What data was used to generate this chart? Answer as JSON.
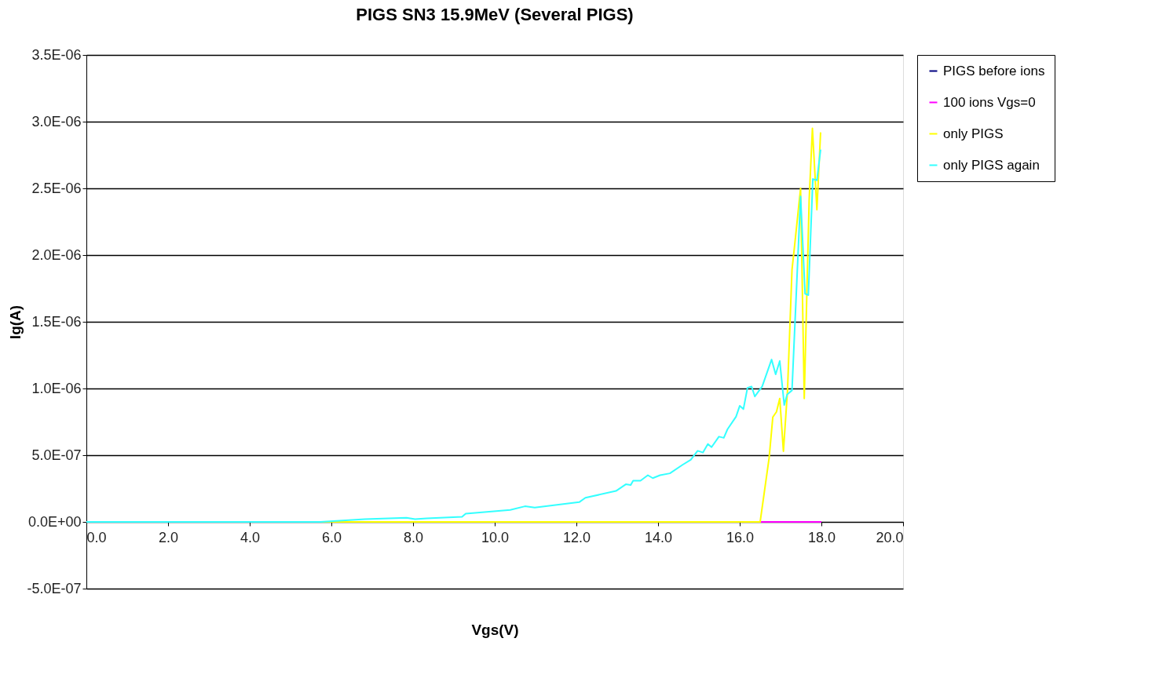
{
  "chart_data": {
    "type": "line",
    "title": "PIGS  SN3 15.9MeV (Several PIGS)",
    "xlabel": "Vgs(V)",
    "ylabel": "Ig(A)",
    "xlim": [
      0,
      20
    ],
    "ylim": [
      -5e-07,
      3.5e-06
    ],
    "xticks": [
      {
        "value": 0,
        "label": "0.0"
      },
      {
        "value": 2,
        "label": "2.0"
      },
      {
        "value": 4,
        "label": "4.0"
      },
      {
        "value": 6,
        "label": "6.0"
      },
      {
        "value": 8,
        "label": "8.0"
      },
      {
        "value": 10,
        "label": "10.0"
      },
      {
        "value": 12,
        "label": "12.0"
      },
      {
        "value": 14,
        "label": "14.0"
      },
      {
        "value": 16,
        "label": "16.0"
      },
      {
        "value": 18,
        "label": "18.0"
      },
      {
        "value": 20,
        "label": "20.0"
      }
    ],
    "yticks": [
      {
        "value": -5e-07,
        "label": "-5.0E-07"
      },
      {
        "value": 0,
        "label": "0.0E+00"
      },
      {
        "value": 5e-07,
        "label": "5.0E-07"
      },
      {
        "value": 1e-06,
        "label": "1.0E-06"
      },
      {
        "value": 1.5e-06,
        "label": "1.5E-06"
      },
      {
        "value": 2e-06,
        "label": "2.0E-06"
      },
      {
        "value": 2.5e-06,
        "label": "2.5E-06"
      },
      {
        "value": 3e-06,
        "label": "3.0E-06"
      },
      {
        "value": 3.5e-06,
        "label": "3.5E-06"
      }
    ],
    "grid": "y",
    "legend": "right",
    "marker": "none",
    "line_style": "solid",
    "series": [
      {
        "name": "PIGS before ions",
        "color": "#000080"
      },
      {
        "name": "100 ions Vgs=0",
        "color": "#ff00ff",
        "x": [
          16.5,
          18.0
        ],
        "values": [
          0,
          0
        ]
      },
      {
        "name": "only PIGS",
        "color": "#ffff00",
        "x": [
          0,
          16.5,
          16.72,
          16.81,
          16.9,
          16.98,
          17.07,
          17.17,
          17.28,
          17.34,
          17.49,
          17.58,
          17.7,
          17.78,
          17.89,
          17.98
        ],
        "values": [
          0,
          0,
          4.8e-07,
          7.85e-07,
          8.25e-07,
          9.25e-07,
          5.3e-07,
          9.85e-07,
          1.89e-06,
          2.06e-06,
          2.5e-06,
          9.25e-07,
          2.41e-06,
          2.95e-06,
          2.34e-06,
          2.92e-06
        ]
      },
      {
        "name": "only PIGS again",
        "color": "#33ffff",
        "x": [
          0,
          5.73,
          6.82,
          7.84,
          8.05,
          8.33,
          9.2,
          9.29,
          10.38,
          10.74,
          10.98,
          12.07,
          12.22,
          12.97,
          13.21,
          13.33,
          13.39,
          13.57,
          13.75,
          13.87,
          14.05,
          14.29,
          14.6,
          14.8,
          14.97,
          15.1,
          15.22,
          15.31,
          15.49,
          15.61,
          15.7,
          15.91,
          16.0,
          16.09,
          16.19,
          16.29,
          16.37,
          16.55,
          16.78,
          16.88,
          16.98,
          17.09,
          17.16,
          17.28,
          17.49,
          17.6,
          17.68,
          17.79,
          17.89,
          17.98
        ],
        "values": [
          0,
          0,
          2e-08,
          3.1e-08,
          2.1e-08,
          2.6e-08,
          3.8e-08,
          6.2e-08,
          9e-08,
          1.17e-07,
          1.08e-07,
          1.48e-07,
          1.81e-07,
          2.32e-07,
          2.82e-07,
          2.76e-07,
          3.09e-07,
          3.09e-07,
          3.5e-07,
          3.28e-07,
          3.5e-07,
          3.64e-07,
          4.28e-07,
          4.65e-07,
          5.33e-07,
          5.2e-07,
          5.84e-07,
          5.6e-07,
          6.39e-07,
          6.3e-07,
          6.94e-07,
          7.89e-07,
          8.7e-07,
          8.45e-07,
          1.005e-06,
          1.015e-06,
          9.4e-07,
          1.015e-06,
          1.217e-06,
          1.106e-06,
          1.206e-06,
          8.76e-07,
          9.55e-07,
          9.86e-07,
          2.44e-06,
          1.71e-06,
          1.7e-06,
          2.57e-06,
          2.56e-06,
          2.79e-06
        ]
      }
    ]
  }
}
